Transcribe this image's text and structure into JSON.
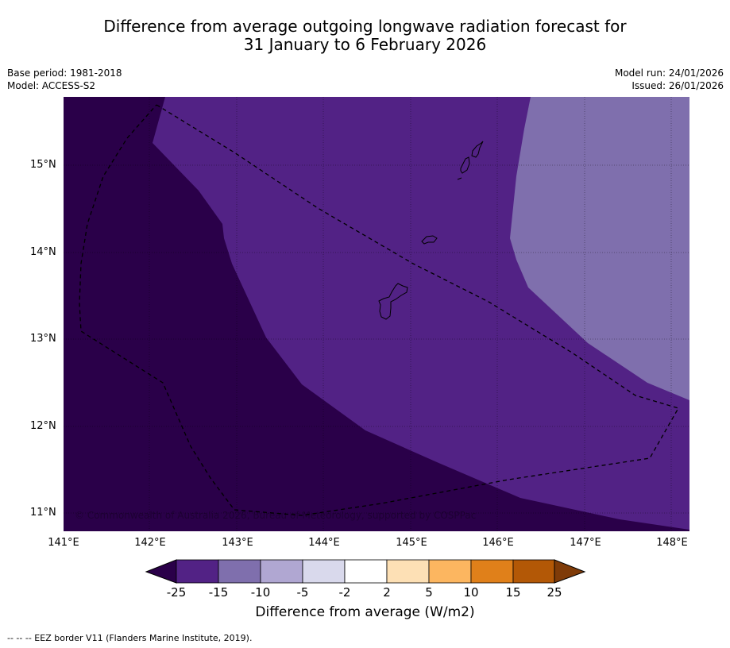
{
  "title_line1": "Difference from average outgoing longwave radiation forecast for",
  "title_line2": "31 January to 6 February 2026",
  "base_period": "Base period: 1981-2018",
  "model": "Model: ACCESS-S2",
  "model_run": "Model run: 24/01/2026",
  "issued": "Issued: 26/01/2026",
  "lat_labels": [
    "15°N",
    "14°N",
    "13°N",
    "12°N",
    "11°N"
  ],
  "lon_labels": [
    "141°E",
    "142°E",
    "143°E",
    "144°E",
    "145°E",
    "146°E",
    "147°E",
    "148°E"
  ],
  "copyright": "© Commonwealth of Australia 2026, Bureau of Meteorology, supported by COSPPac",
  "colorbar": {
    "labels": [
      "-25",
      "-15",
      "-10",
      "-5",
      "-2",
      "2",
      "5",
      "10",
      "15",
      "25"
    ],
    "colors": [
      "#2a0049",
      "#522285",
      "#7f6fad",
      "#b0a7d2",
      "#d9d9ec",
      "#ffffff",
      "#fde0b5",
      "#fcb660",
      "#e0801a",
      "#b35806",
      "#7f3b08"
    ],
    "title": "Difference from average (W/m2)"
  },
  "footnote": "--  --  -- EEZ border V11 (Flanders Marine Institute, 2019).",
  "colors": {
    "dark": "#2a0049",
    "mid": "#522285",
    "light": "#7f6fad"
  }
}
